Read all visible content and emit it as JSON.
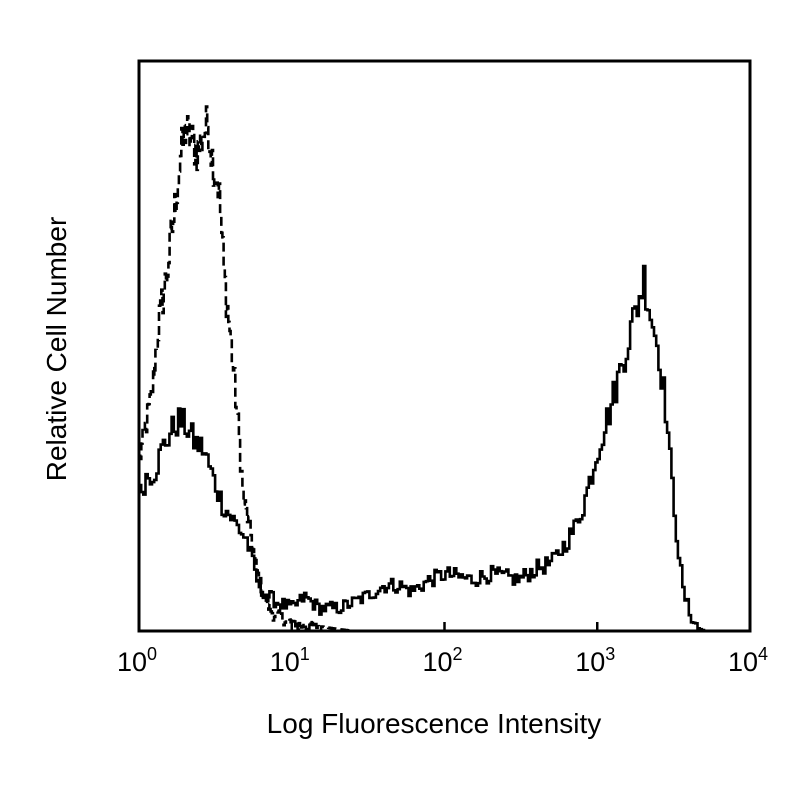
{
  "chart_data": {
    "type": "line",
    "title": "",
    "xlabel": "Log Fluorescence Intensity",
    "ylabel": "Relative Cell Number",
    "x_scale": "log",
    "xlim": [
      1,
      10000
    ],
    "ylim": [
      0,
      100
    ],
    "y_ticks": "none",
    "grid": false,
    "legend": "none",
    "x_ticks": [
      {
        "value": 1,
        "base": "10",
        "exp": "0"
      },
      {
        "value": 10,
        "base": "10",
        "exp": "1"
      },
      {
        "value": 100,
        "base": "10",
        "exp": "2"
      },
      {
        "value": 1000,
        "base": "10",
        "exp": "3"
      },
      {
        "value": 10000,
        "base": "10",
        "exp": "4"
      }
    ],
    "series": [
      {
        "style": "dashed",
        "color": "#000000",
        "points": [
          [
            1.0,
            30
          ],
          [
            1.1,
            36
          ],
          [
            1.2,
            41
          ],
          [
            1.35,
            55
          ],
          [
            1.5,
            62
          ],
          [
            1.7,
            74
          ],
          [
            1.85,
            83
          ],
          [
            2.0,
            88
          ],
          [
            2.2,
            86
          ],
          [
            2.4,
            84
          ],
          [
            2.6,
            87
          ],
          [
            2.8,
            89
          ],
          [
            3.0,
            83
          ],
          [
            3.3,
            78
          ],
          [
            3.6,
            62
          ],
          [
            4.0,
            50
          ],
          [
            4.4,
            37
          ],
          [
            4.8,
            23
          ],
          [
            5.3,
            18
          ],
          [
            5.8,
            11
          ],
          [
            6.5,
            6
          ],
          [
            7.5,
            3
          ],
          [
            9,
            2
          ],
          [
            11,
            1
          ],
          [
            14,
            1
          ],
          [
            18,
            0.5
          ],
          [
            25,
            0
          ],
          [
            100,
            0
          ]
        ]
      },
      {
        "style": "solid",
        "color": "#000000",
        "points": [
          [
            1.0,
            24
          ],
          [
            1.1,
            27
          ],
          [
            1.25,
            28
          ],
          [
            1.4,
            32
          ],
          [
            1.6,
            35
          ],
          [
            1.8,
            37
          ],
          [
            2.0,
            36
          ],
          [
            2.3,
            33
          ],
          [
            2.6,
            32
          ],
          [
            3.0,
            27
          ],
          [
            3.5,
            22
          ],
          [
            4.2,
            19
          ],
          [
            5.0,
            16
          ],
          [
            6.0,
            8
          ],
          [
            7.0,
            6
          ],
          [
            8.0,
            5
          ],
          [
            10,
            4
          ],
          [
            12,
            6
          ],
          [
            15,
            4
          ],
          [
            20,
            4
          ],
          [
            25,
            5
          ],
          [
            30,
            6
          ],
          [
            40,
            8
          ],
          [
            50,
            8
          ],
          [
            60,
            7
          ],
          [
            80,
            9
          ],
          [
            100,
            10
          ],
          [
            150,
            9
          ],
          [
            200,
            10
          ],
          [
            300,
            9
          ],
          [
            400,
            11
          ],
          [
            500,
            12
          ],
          [
            600,
            15
          ],
          [
            700,
            18
          ],
          [
            800,
            22
          ],
          [
            1000,
            32
          ],
          [
            1200,
            39
          ],
          [
            1500,
            49
          ],
          [
            1800,
            57
          ],
          [
            2000,
            62
          ],
          [
            2200,
            56
          ],
          [
            2500,
            49
          ],
          [
            2800,
            38
          ],
          [
            3000,
            28
          ],
          [
            3300,
            16
          ],
          [
            3600,
            7
          ],
          [
            4000,
            3
          ],
          [
            4500,
            0.5
          ],
          [
            5000,
            0
          ]
        ]
      }
    ]
  }
}
